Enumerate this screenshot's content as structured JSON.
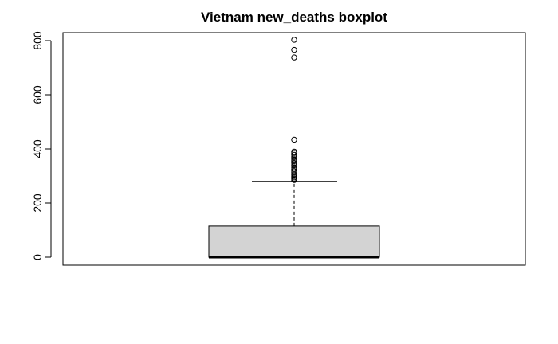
{
  "chart_data": {
    "type": "boxplot",
    "title": "Vietnam new_deaths boxplot",
    "xlabel": "",
    "ylabel": "",
    "ylim": [
      0,
      830
    ],
    "yticks": [
      0,
      200,
      400,
      600,
      800
    ],
    "box": {
      "min": 0,
      "q1": 0,
      "median": 0,
      "q3": 115,
      "whisker_low": 0,
      "whisker_high": 280
    },
    "outliers": [
      285,
      290,
      295,
      300,
      305,
      312,
      318,
      325,
      332,
      340,
      348,
      355,
      362,
      370,
      378,
      385,
      390,
      434,
      738,
      766,
      803
    ],
    "colors": {
      "box_fill": "#d3d3d3",
      "stroke": "#000000"
    }
  }
}
